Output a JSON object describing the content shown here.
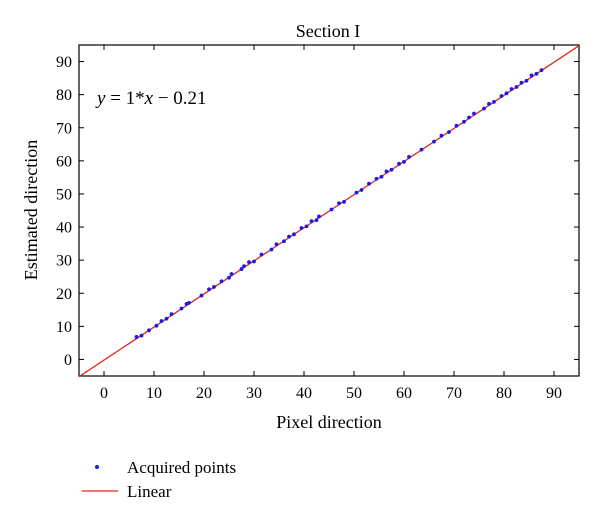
{
  "chart_data": {
    "type": "scatter",
    "title": "Section I",
    "xlabel": "Pixel direction",
    "ylabel": "Estimated direction",
    "xlim": [
      -5,
      95
    ],
    "ylim": [
      -5,
      95
    ],
    "xticks": [
      0,
      10,
      20,
      30,
      40,
      50,
      60,
      70,
      80,
      90
    ],
    "yticks": [
      0,
      10,
      20,
      30,
      40,
      50,
      60,
      70,
      80,
      90
    ],
    "grid": false,
    "legend_position": "bottom-left",
    "annotation": {
      "y_sym": "y",
      "middle": " = 1*",
      "x_sym": "x",
      "tail": " − 0.21"
    },
    "series": [
      {
        "name": "Acquired points",
        "kind": "scatter",
        "color": "#1a1ae6",
        "x": [
          6.5,
          7.5,
          9,
          10.5,
          11.5,
          12.5,
          13.5,
          15.5,
          16.5,
          17,
          19.5,
          21,
          22,
          23.5,
          25,
          25.5,
          27.5,
          28,
          29,
          30,
          31.5,
          33.5,
          34.5,
          36,
          37,
          38,
          39.5,
          40.5,
          41.5,
          42.5,
          43,
          45.5,
          47,
          48,
          50.5,
          51.5,
          53,
          54.5,
          55.5,
          56.5,
          57.5,
          59,
          60,
          61,
          63.5,
          66,
          67.5,
          69,
          70.5,
          72,
          73,
          74,
          76,
          77,
          78,
          79.5,
          80.5,
          81.5,
          82.5,
          83.5,
          84.5,
          85.5,
          86.5,
          87.5
        ],
        "y": [
          6.8,
          7.2,
          8.8,
          10.2,
          11.6,
          12.3,
          13.7,
          15.4,
          16.8,
          17.1,
          19.3,
          21.2,
          21.9,
          23.6,
          24.7,
          25.8,
          27.3,
          28.2,
          29.4,
          29.6,
          31.7,
          33.2,
          34.8,
          35.7,
          37.1,
          37.8,
          39.7,
          40.2,
          41.8,
          42.1,
          43.2,
          45.3,
          47.2,
          47.6,
          50.4,
          51.2,
          53.1,
          54.6,
          55.2,
          56.8,
          57.3,
          59.1,
          59.7,
          61.2,
          63.4,
          65.8,
          67.6,
          68.7,
          70.6,
          71.8,
          73.1,
          74.3,
          75.8,
          77.2,
          77.8,
          79.6,
          80.4,
          81.7,
          82.3,
          83.6,
          84.2,
          85.8,
          86.3,
          87.4
        ]
      },
      {
        "name": "Linear",
        "kind": "line",
        "color": "#e8231c",
        "slope": 1,
        "intercept": -0.21
      }
    ]
  }
}
